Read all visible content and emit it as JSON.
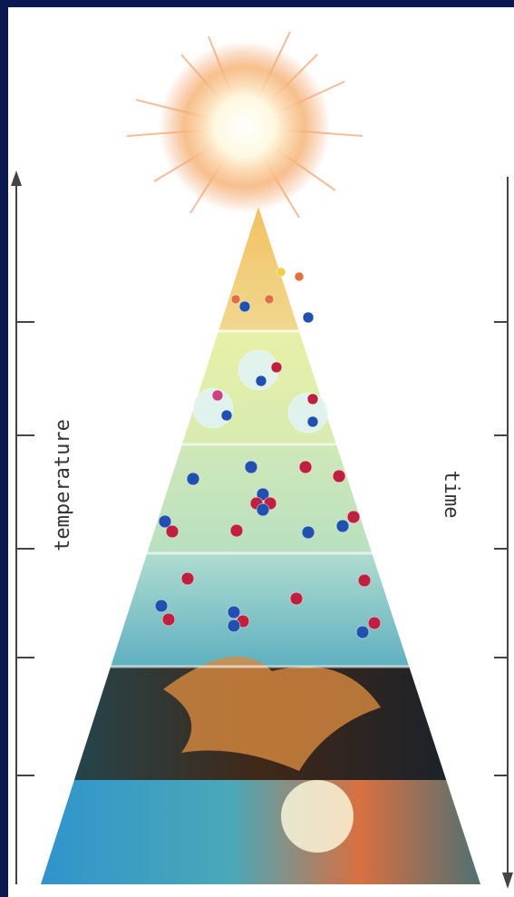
{
  "axes": {
    "left_label": "temperature",
    "right_label": "time"
  }
}
